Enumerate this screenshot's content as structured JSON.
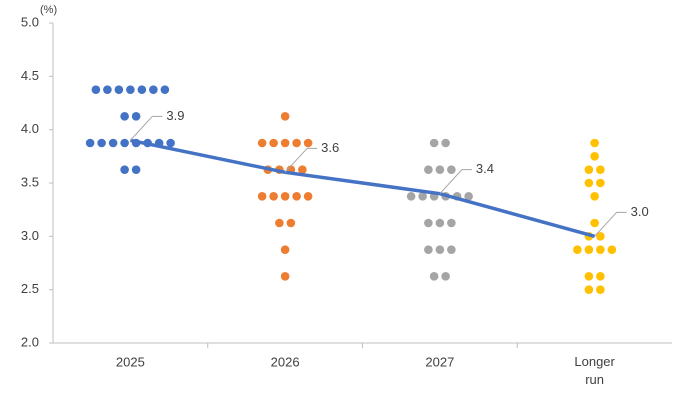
{
  "chart_data": {
    "type": "dot",
    "y_unit": "(%)",
    "categories": [
      "2025",
      "2026",
      "2027",
      "Longer run"
    ],
    "colors": [
      "#4472c4",
      "#ed7d31",
      "#a5a5a5",
      "#ffc000"
    ],
    "dots": [
      [
        4.375,
        4.375,
        4.375,
        4.375,
        4.375,
        4.375,
        4.375,
        4.125,
        4.125,
        3.875,
        3.875,
        3.875,
        3.875,
        3.875,
        3.875,
        3.875,
        3.875,
        3.625,
        3.625
      ],
      [
        4.125,
        3.875,
        3.875,
        3.875,
        3.875,
        3.875,
        3.625,
        3.625,
        3.625,
        3.625,
        3.375,
        3.375,
        3.375,
        3.375,
        3.375,
        3.125,
        3.125,
        2.875,
        2.625
      ],
      [
        3.875,
        3.875,
        3.625,
        3.625,
        3.625,
        3.375,
        3.375,
        3.375,
        3.375,
        3.375,
        3.375,
        3.125,
        3.125,
        3.125,
        2.875,
        2.875,
        2.875,
        2.625,
        2.625
      ],
      [
        3.875,
        3.75,
        3.625,
        3.625,
        3.5,
        3.5,
        3.375,
        3.125,
        3.0,
        3.0,
        2.875,
        2.875,
        2.875,
        2.875,
        2.625,
        2.625,
        2.5,
        2.5
      ]
    ],
    "median": {
      "color": "#4472c4",
      "values": [
        3.9,
        3.6,
        3.4,
        3.0
      ],
      "value_labels": [
        "3.9",
        "3.6",
        "3.4",
        "3.0"
      ]
    },
    "ylim": [
      2.0,
      5.0
    ],
    "yticks": [
      {
        "value": 2.0,
        "label": "2.0"
      },
      {
        "value": 2.5,
        "label": "2.5"
      },
      {
        "value": 3.0,
        "label": "3.0"
      },
      {
        "value": 3.5,
        "label": "3.5"
      },
      {
        "value": 4.0,
        "label": "4.0"
      },
      {
        "value": 4.5,
        "label": "4.5"
      },
      {
        "value": 5.0,
        "label": "5.0"
      }
    ]
  }
}
